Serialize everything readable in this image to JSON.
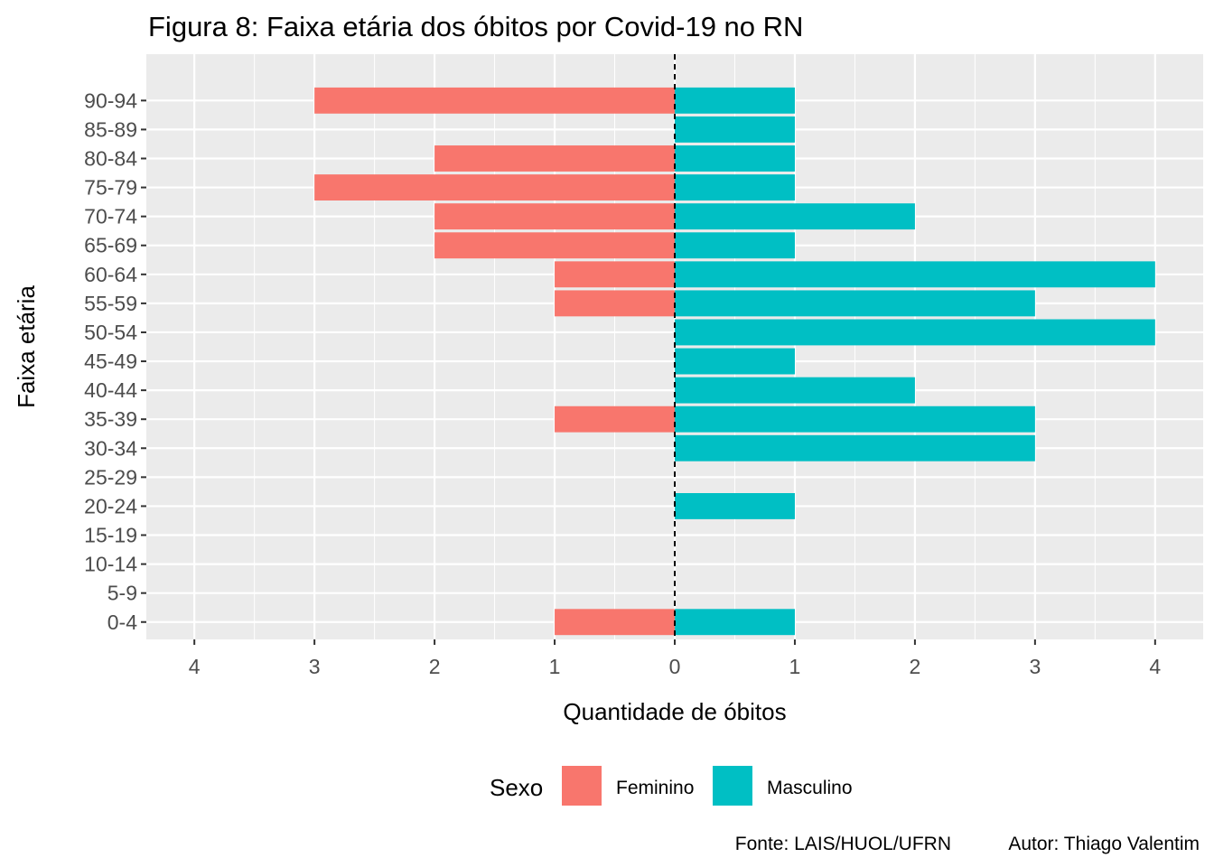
{
  "chart_data": {
    "type": "bar",
    "orientation": "horizontal",
    "title": "Figura 8: Faixa etária dos óbitos por Covid-19 no RN",
    "xlabel": "Quantidade de óbitos",
    "ylabel": "Faixa etária",
    "xlim": [
      -4.4,
      4.4
    ],
    "x_ticks": [
      -4,
      -3,
      -2,
      -1,
      0,
      1,
      2,
      3,
      4
    ],
    "x_tick_labels": [
      "4",
      "3",
      "2",
      "1",
      "0",
      "1",
      "2",
      "3",
      "4"
    ],
    "categories": [
      "0-4",
      "5-9",
      "10-14",
      "15-19",
      "20-24",
      "25-29",
      "30-34",
      "35-39",
      "40-44",
      "45-49",
      "50-54",
      "55-59",
      "60-64",
      "65-69",
      "70-74",
      "75-79",
      "80-84",
      "85-89",
      "90-94"
    ],
    "series": [
      {
        "name": "Feminino",
        "color": "#F8766D",
        "values": [
          -1,
          0,
          0,
          0,
          0,
          0,
          0,
          -1,
          0,
          0,
          0,
          -1,
          -1,
          -2,
          -2,
          -3,
          -2,
          0,
          -3
        ]
      },
      {
        "name": "Masculino",
        "color": "#00BFC4",
        "values": [
          1,
          0,
          0,
          0,
          1,
          0,
          3,
          3,
          2,
          1,
          4,
          3,
          4,
          1,
          2,
          1,
          1,
          1,
          1
        ]
      }
    ],
    "zero_line": "dashed",
    "grid": true,
    "legend": {
      "title": "Sexo",
      "position": "bottom"
    },
    "caption": [
      "Fonte: LAIS/HUOL/UFRN",
      "Autor: Thiago Valentim"
    ]
  }
}
